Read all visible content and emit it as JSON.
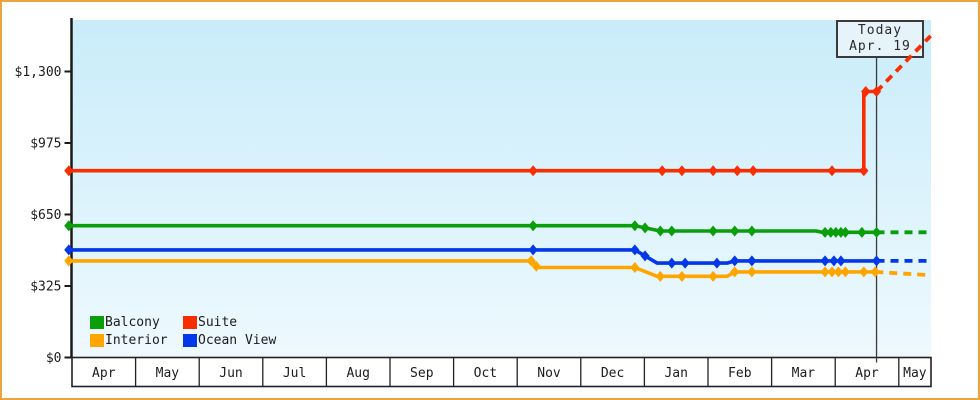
{
  "chart_data": {
    "type": "line",
    "title": "",
    "x_axis": {
      "categories": [
        "Apr",
        "May",
        "Jun",
        "Jul",
        "Aug",
        "Sep",
        "Oct",
        "Nov",
        "Dec",
        "Jan",
        "Feb",
        "Mar",
        "Apr",
        "May"
      ],
      "unit": "month"
    },
    "y_axis": {
      "tick_labels": [
        "$0",
        "$325",
        "$650",
        "$975",
        "$1,300"
      ],
      "tick_values": [
        0,
        325,
        650,
        975,
        1300
      ],
      "range": [
        0,
        1535
      ],
      "grid": false
    },
    "today": {
      "line1": "Today",
      "line2": "Apr. 19",
      "t": 12.65
    },
    "series": [
      {
        "name": "Suite",
        "color": "#fa2d00",
        "points": [
          [
            -0.05,
            849
          ],
          [
            12.45,
            849
          ],
          [
            12.45,
            1209
          ],
          [
            12.65,
            1209
          ]
        ],
        "markers": [
          [
            -0.05,
            849
          ],
          [
            7.25,
            849
          ],
          [
            9.28,
            849
          ],
          [
            9.59,
            849
          ],
          [
            10.08,
            849
          ],
          [
            10.46,
            849
          ],
          [
            10.71,
            849
          ],
          [
            11.95,
            849
          ],
          [
            12.45,
            849
          ],
          [
            12.48,
            1209
          ],
          [
            12.65,
            1209
          ]
        ],
        "forecast_dash": [
          [
            12.65,
            1209
          ],
          [
            13.5,
            1462
          ]
        ]
      },
      {
        "name": "Balcony",
        "color": "#0a9e0a",
        "points": [
          [
            -0.05,
            599
          ],
          [
            8.85,
            599
          ],
          [
            9.25,
            575
          ],
          [
            11.7,
            575
          ],
          [
            11.8,
            569
          ],
          [
            12.65,
            569
          ]
        ],
        "markers": [
          [
            -0.05,
            599
          ],
          [
            7.25,
            599
          ],
          [
            8.85,
            599
          ],
          [
            9.01,
            589
          ],
          [
            9.25,
            575
          ],
          [
            9.43,
            575
          ],
          [
            10.08,
            575
          ],
          [
            10.42,
            575
          ],
          [
            10.69,
            575
          ],
          [
            11.84,
            569
          ],
          [
            11.93,
            569
          ],
          [
            12.01,
            569
          ],
          [
            12.09,
            569
          ],
          [
            12.16,
            569
          ],
          [
            12.42,
            569
          ],
          [
            12.65,
            569
          ]
        ],
        "forecast_dash": [
          [
            12.65,
            569
          ],
          [
            13.5,
            569
          ]
        ]
      },
      {
        "name": "Ocean View",
        "color": "#0338e8",
        "points": [
          [
            -0.05,
            489
          ],
          [
            8.85,
            489
          ],
          [
            9.2,
            429
          ],
          [
            10.3,
            429
          ],
          [
            10.42,
            439
          ],
          [
            12.65,
            439
          ]
        ],
        "markers": [
          [
            -0.05,
            489
          ],
          [
            7.25,
            489
          ],
          [
            8.85,
            489
          ],
          [
            9.01,
            462
          ],
          [
            9.43,
            429
          ],
          [
            9.64,
            429
          ],
          [
            10.14,
            429
          ],
          [
            10.42,
            439
          ],
          [
            10.69,
            439
          ],
          [
            11.84,
            439
          ],
          [
            11.98,
            439
          ],
          [
            12.09,
            439
          ],
          [
            12.65,
            439
          ]
        ],
        "forecast_dash": [
          [
            12.65,
            439
          ],
          [
            13.5,
            439
          ]
        ]
      },
      {
        "name": "Interior",
        "color": "#ffa500",
        "points": [
          [
            -0.05,
            439
          ],
          [
            7.22,
            439
          ],
          [
            7.32,
            409
          ],
          [
            8.85,
            409
          ],
          [
            9.2,
            369
          ],
          [
            10.3,
            369
          ],
          [
            10.42,
            389
          ],
          [
            12.63,
            389
          ]
        ],
        "markers": [
          [
            -0.05,
            439
          ],
          [
            7.22,
            439
          ],
          [
            7.3,
            415
          ],
          [
            8.85,
            409
          ],
          [
            9.25,
            369
          ],
          [
            9.59,
            369
          ],
          [
            10.08,
            369
          ],
          [
            10.42,
            389
          ],
          [
            10.69,
            389
          ],
          [
            11.84,
            389
          ],
          [
            11.95,
            389
          ],
          [
            12.05,
            389
          ],
          [
            12.16,
            389
          ],
          [
            12.45,
            389
          ],
          [
            12.63,
            389
          ]
        ],
        "forecast_dash": [
          [
            12.63,
            389
          ],
          [
            13.5,
            374
          ]
        ]
      }
    ],
    "legend": {
      "position": "bottom-left",
      "items": [
        {
          "label": "Balcony",
          "color": "#0a9e0a"
        },
        {
          "label": "Suite",
          "color": "#fa2d00"
        },
        {
          "label": "Interior",
          "color": "#ffa500"
        },
        {
          "label": "Ocean View",
          "color": "#0338e8"
        }
      ]
    },
    "colors": {
      "plot_bg_top": "#c9ecfa",
      "plot_bg_bottom": "#eef9fe",
      "axis": "#1a1a1a",
      "frame_border": "#eea43c",
      "today_box_bg": "#e7f3fb"
    }
  }
}
